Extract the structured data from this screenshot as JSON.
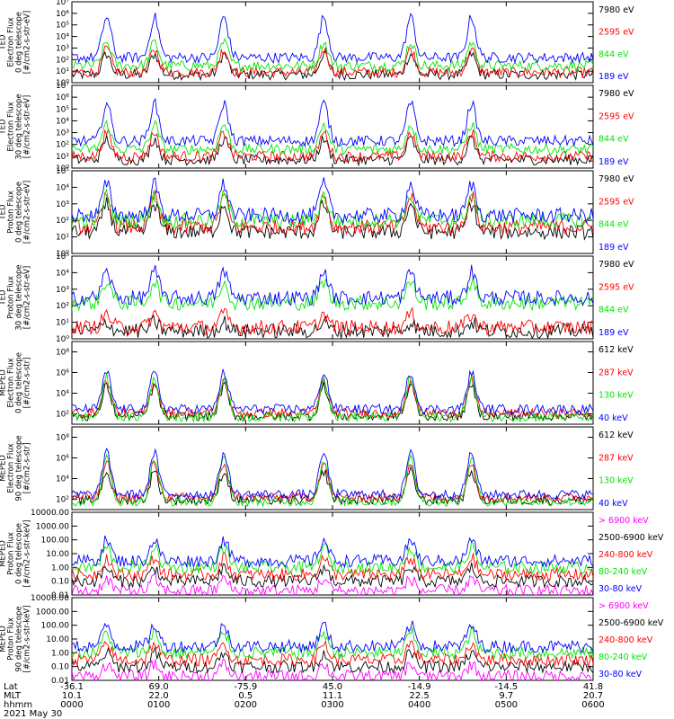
{
  "colors": {
    "black": "#000000",
    "red": "#ff0000",
    "green": "#00e600",
    "blue": "#0000ff",
    "magenta": "#ff00ff"
  },
  "chart_data": [
    {
      "type": "line",
      "ylabel": [
        "TED",
        "Electron Flux",
        "0 deg telescope",
        "[#/cm2-s-str-eV]"
      ],
      "y_scale": "log",
      "ylim": [
        1,
        10000000
      ],
      "ytick_values": [
        1,
        10,
        100,
        1000,
        10000,
        100000,
        1000000,
        10000000
      ],
      "ytick_labels": [
        "10⁰",
        "10¹",
        "10²",
        "10³",
        "10⁴",
        "10⁵",
        "10⁶",
        "10⁷"
      ],
      "series": [
        {
          "name": "7980 eV",
          "color": "#000000",
          "base": 5,
          "pass_peak": 300
        },
        {
          "name": "2595 eV",
          "color": "#ff0000",
          "base": 8,
          "pass_peak": 800
        },
        {
          "name": "844 eV",
          "color": "#00e600",
          "base": 30,
          "pass_peak": 3000
        },
        {
          "name": "189 eV",
          "color": "#0000ff",
          "base": 150,
          "pass_peak": 500000
        }
      ]
    },
    {
      "type": "line",
      "ylabel": [
        "TED",
        "Electron Flux",
        "30 deg telescope",
        "[#/cm2-s-str-eV]"
      ],
      "y_scale": "log",
      "ylim": [
        1,
        10000000
      ],
      "ytick_values": [
        1,
        10,
        100,
        1000,
        10000,
        100000,
        1000000,
        10000000
      ],
      "ytick_labels": [
        "10⁰",
        "10¹",
        "10²",
        "10³",
        "10⁴",
        "10⁵",
        "10⁶",
        "10⁷"
      ],
      "series": [
        {
          "name": "7980 eV",
          "color": "#000000",
          "base": 5,
          "pass_peak": 300
        },
        {
          "name": "2595 eV",
          "color": "#ff0000",
          "base": 10,
          "pass_peak": 1000
        },
        {
          "name": "844 eV",
          "color": "#00e600",
          "base": 40,
          "pass_peak": 5000
        },
        {
          "name": "189 eV",
          "color": "#0000ff",
          "base": 200,
          "pass_peak": 300000
        }
      ]
    },
    {
      "type": "line",
      "ylabel": [
        "TED",
        "Proton Flux",
        "0 deg telescope",
        "[#/cm2-s-str-eV]"
      ],
      "y_scale": "log",
      "ylim": [
        1,
        100000
      ],
      "ytick_values": [
        1,
        10,
        100,
        1000,
        10000,
        100000
      ],
      "ytick_labels": [
        "10⁰",
        "10¹",
        "10²",
        "10³",
        "10⁴",
        "10⁵"
      ],
      "series": [
        {
          "name": "7980 eV",
          "color": "#000000",
          "base": 20,
          "pass_peak": 1000
        },
        {
          "name": "2595 eV",
          "color": "#ff0000",
          "base": 40,
          "pass_peak": 3000
        },
        {
          "name": "844 eV",
          "color": "#00e600",
          "base": 100,
          "pass_peak": 3000
        },
        {
          "name": "189 eV",
          "color": "#0000ff",
          "base": 200,
          "pass_peak": 15000
        }
      ]
    },
    {
      "type": "line",
      "ylabel": [
        "TED",
        "Proton Flux",
        "30 deg telescope",
        "[#/cm2-s-str-eV]"
      ],
      "y_scale": "log",
      "ylim": [
        1,
        100000
      ],
      "ytick_values": [
        1,
        10,
        100,
        1000,
        10000,
        100000
      ],
      "ytick_labels": [
        "10⁰",
        "10¹",
        "10²",
        "10³",
        "10⁴",
        "10⁵"
      ],
      "series": [
        {
          "name": "7980 eV",
          "color": "#000000",
          "base": 3,
          "pass_peak": 10
        },
        {
          "name": "2595 eV",
          "color": "#ff0000",
          "base": 5,
          "pass_peak": 30
        },
        {
          "name": "844 eV",
          "color": "#00e600",
          "base": 150,
          "pass_peak": 3000
        },
        {
          "name": "189 eV",
          "color": "#0000ff",
          "base": 300,
          "pass_peak": 12000
        }
      ]
    },
    {
      "type": "line",
      "ylabel": [
        "MEPED",
        "Electron Flux",
        "0 deg telescope",
        "[#/cm2-s-str]"
      ],
      "y_scale": "log",
      "ylim": [
        10,
        1000000000
      ],
      "ytick_values": [
        100,
        10000,
        1000000,
        100000000
      ],
      "ytick_labels": [
        "10²",
        "10⁴",
        "10⁶",
        "10⁸"
      ],
      "series": [
        {
          "name": "612 keV",
          "color": "#000000",
          "base": 60,
          "pass_peak": 50000
        },
        {
          "name": "287 keV",
          "color": "#ff0000",
          "base": 120,
          "pass_peak": 150000
        },
        {
          "name": "130 keV",
          "color": "#00e600",
          "base": 50,
          "pass_peak": 300000
        },
        {
          "name": "40 keV",
          "color": "#0000ff",
          "base": 300,
          "pass_peak": 1000000
        }
      ]
    },
    {
      "type": "line",
      "ylabel": [
        "MEPED",
        "Electron Flux",
        "90 deg telescope",
        "[#/cm2-s-str]"
      ],
      "y_scale": "log",
      "ylim": [
        10,
        1000000000
      ],
      "ytick_values": [
        100,
        10000,
        1000000,
        100000000
      ],
      "ytick_labels": [
        "10²",
        "10⁴",
        "10⁶",
        "10⁸"
      ],
      "series": [
        {
          "name": "612 keV",
          "color": "#000000",
          "base": 80,
          "pass_peak": 50000
        },
        {
          "name": "287 keV",
          "color": "#ff0000",
          "base": 150,
          "pass_peak": 300000
        },
        {
          "name": "130 keV",
          "color": "#00e600",
          "base": 60,
          "pass_peak": 800000
        },
        {
          "name": "40 keV",
          "color": "#0000ff",
          "base": 300,
          "pass_peak": 3000000
        }
      ]
    },
    {
      "type": "line",
      "ylabel": [
        "MEPED",
        "Proton Flux",
        "0 deg telescope",
        "[#/cm2-s-str-keV]"
      ],
      "y_scale": "log",
      "ylim": [
        0.01,
        10000
      ],
      "ytick_values": [
        0.01,
        0.1,
        1,
        10,
        100,
        1000,
        10000
      ],
      "ytick_labels": [
        "0.01",
        "0.10",
        "1.00",
        "10.00",
        "100.00",
        "1000.00",
        "10000.00"
      ],
      "series": [
        {
          "name": "> 6900 keV",
          "color": "#ff00ff",
          "base": 0.02,
          "pass_peak": 0.15
        },
        {
          "name": "2500-6900 keV",
          "color": "#000000",
          "base": 0.1,
          "pass_peak": 1
        },
        {
          "name": "240-800 keV",
          "color": "#ff0000",
          "base": 0.3,
          "pass_peak": 5
        },
        {
          "name": "80-240 keV",
          "color": "#00e600",
          "base": 1,
          "pass_peak": 30
        },
        {
          "name": "30-80 keV",
          "color": "#0000ff",
          "base": 3,
          "pass_peak": 100
        }
      ]
    },
    {
      "type": "line",
      "ylabel": [
        "MEPED",
        "Proton Flux",
        "90 deg telescope",
        "[#/cm2-s-str-keV]"
      ],
      "y_scale": "log",
      "ylim": [
        0.01,
        10000
      ],
      "ytick_values": [
        0.01,
        0.1,
        1,
        10,
        100,
        1000,
        10000
      ],
      "ytick_labels": [
        "0.01",
        "0.10",
        "1.00",
        "10.00",
        "100.00",
        "1000.00",
        "10000.00"
      ],
      "series": [
        {
          "name": "> 6900 keV",
          "color": "#ff00ff",
          "base": 0.02,
          "pass_peak": 0.15
        },
        {
          "name": "2500-6900 keV",
          "color": "#000000",
          "base": 0.1,
          "pass_peak": 1
        },
        {
          "name": "240-800 keV",
          "color": "#ff0000",
          "base": 0.3,
          "pass_peak": 5
        },
        {
          "name": "80-240 keV",
          "color": "#00e600",
          "base": 1,
          "pass_peak": 30
        },
        {
          "name": "30-80 keV",
          "color": "#0000ff",
          "base": 3,
          "pass_peak": 100
        }
      ]
    }
  ],
  "x_axis": {
    "range_hours": [
      0,
      6
    ],
    "row_labels": [
      "Lat",
      "MLT",
      "hhmm"
    ],
    "date_label": "2021 May 30",
    "ticks": [
      {
        "hours": 0,
        "lat": "-36.1",
        "mlt": "10.1",
        "hhmm": "0000"
      },
      {
        "hours": 1,
        "lat": "69.0",
        "mlt": "22.0",
        "hhmm": "0100"
      },
      {
        "hours": 2,
        "lat": "-75.9",
        "mlt": "0.5",
        "hhmm": "0200"
      },
      {
        "hours": 3,
        "lat": "45.0",
        "mlt": "11.1",
        "hhmm": "0300"
      },
      {
        "hours": 4,
        "lat": "-14.9",
        "mlt": "22.5",
        "hhmm": "0400"
      },
      {
        "hours": 5,
        "lat": "-14.5",
        "mlt": "9.7",
        "hhmm": "0500"
      },
      {
        "hours": 6,
        "lat": "41.8",
        "mlt": "20.7",
        "hhmm": "0600"
      }
    ],
    "radiation_belt_passes_hours": [
      0.4,
      0.95,
      1.75,
      2.9,
      3.9,
      4.6
    ]
  }
}
